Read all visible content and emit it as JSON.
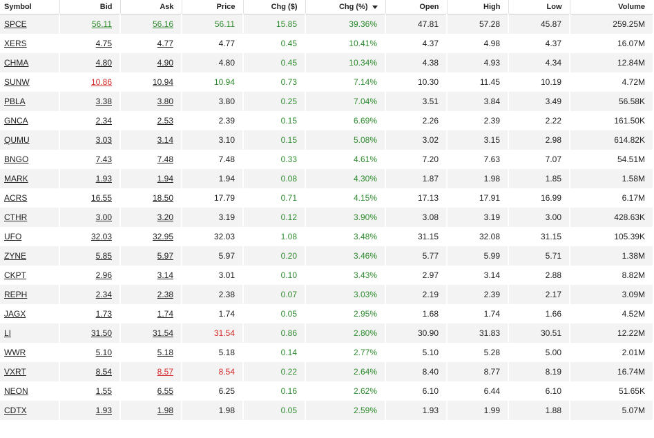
{
  "headers": {
    "symbol": "Symbol",
    "bid": "Bid",
    "ask": "Ask",
    "price": "Price",
    "chg": "Chg ($)",
    "chg_pct": "Chg (%)",
    "open": "Open",
    "high": "High",
    "low": "Low",
    "volume": "Volume"
  },
  "colors": {
    "up": "#2e8b2e",
    "down": "#d62828"
  },
  "rows": [
    {
      "symbol": "SPCE",
      "bid": "56.11",
      "bid_color": "up",
      "ask": "56.16",
      "ask_color": "up",
      "price": "56.11",
      "price_color": "up",
      "chg": "15.85",
      "chg_pct": "39.36%",
      "open": "47.81",
      "high": "57.28",
      "low": "45.87",
      "volume": "259.25M"
    },
    {
      "symbol": "XERS",
      "bid": "4.75",
      "bid_color": "",
      "ask": "4.77",
      "ask_color": "",
      "price": "4.77",
      "price_color": "",
      "chg": "0.45",
      "chg_pct": "10.41%",
      "open": "4.37",
      "high": "4.98",
      "low": "4.37",
      "volume": "16.07M"
    },
    {
      "symbol": "CHMA",
      "bid": "4.80",
      "bid_color": "",
      "ask": "4.90",
      "ask_color": "",
      "price": "4.80",
      "price_color": "",
      "chg": "0.45",
      "chg_pct": "10.34%",
      "open": "4.38",
      "high": "4.93",
      "low": "4.34",
      "volume": "12.84M"
    },
    {
      "symbol": "SUNW",
      "bid": "10.86",
      "bid_color": "down",
      "ask": "10.94",
      "ask_color": "",
      "price": "10.94",
      "price_color": "up",
      "chg": "0.73",
      "chg_pct": "7.14%",
      "open": "10.30",
      "high": "11.45",
      "low": "10.19",
      "volume": "4.72M"
    },
    {
      "symbol": "PBLA",
      "bid": "3.38",
      "bid_color": "",
      "ask": "3.80",
      "ask_color": "",
      "price": "3.80",
      "price_color": "",
      "chg": "0.25",
      "chg_pct": "7.04%",
      "open": "3.51",
      "high": "3.84",
      "low": "3.49",
      "volume": "56.58K"
    },
    {
      "symbol": "GNCA",
      "bid": "2.34",
      "bid_color": "",
      "ask": "2.53",
      "ask_color": "",
      "price": "2.39",
      "price_color": "",
      "chg": "0.15",
      "chg_pct": "6.69%",
      "open": "2.26",
      "high": "2.39",
      "low": "2.22",
      "volume": "161.50K"
    },
    {
      "symbol": "QUMU",
      "bid": "3.03",
      "bid_color": "",
      "ask": "3.14",
      "ask_color": "",
      "price": "3.10",
      "price_color": "",
      "chg": "0.15",
      "chg_pct": "5.08%",
      "open": "3.02",
      "high": "3.15",
      "low": "2.98",
      "volume": "614.82K"
    },
    {
      "symbol": "BNGO",
      "bid": "7.43",
      "bid_color": "",
      "ask": "7.48",
      "ask_color": "",
      "price": "7.48",
      "price_color": "",
      "chg": "0.33",
      "chg_pct": "4.61%",
      "open": "7.20",
      "high": "7.63",
      "low": "7.07",
      "volume": "54.51M"
    },
    {
      "symbol": "MARK",
      "bid": "1.93",
      "bid_color": "",
      "ask": "1.94",
      "ask_color": "",
      "price": "1.94",
      "price_color": "",
      "chg": "0.08",
      "chg_pct": "4.30%",
      "open": "1.87",
      "high": "1.98",
      "low": "1.85",
      "volume": "1.58M"
    },
    {
      "symbol": "ACRS",
      "bid": "16.55",
      "bid_color": "",
      "ask": "18.50",
      "ask_color": "",
      "price": "17.79",
      "price_color": "",
      "chg": "0.71",
      "chg_pct": "4.15%",
      "open": "17.13",
      "high": "17.91",
      "low": "16.99",
      "volume": "6.17M"
    },
    {
      "symbol": "CTHR",
      "bid": "3.00",
      "bid_color": "",
      "ask": "3.20",
      "ask_color": "",
      "price": "3.19",
      "price_color": "",
      "chg": "0.12",
      "chg_pct": "3.90%",
      "open": "3.08",
      "high": "3.19",
      "low": "3.00",
      "volume": "428.63K"
    },
    {
      "symbol": "UFO",
      "bid": "32.03",
      "bid_color": "",
      "ask": "32.95",
      "ask_color": "",
      "price": "32.03",
      "price_color": "",
      "chg": "1.08",
      "chg_pct": "3.48%",
      "open": "31.15",
      "high": "32.08",
      "low": "31.15",
      "volume": "105.39K"
    },
    {
      "symbol": "ZYNE",
      "bid": "5.85",
      "bid_color": "",
      "ask": "5.97",
      "ask_color": "",
      "price": "5.97",
      "price_color": "",
      "chg": "0.20",
      "chg_pct": "3.46%",
      "open": "5.77",
      "high": "5.99",
      "low": "5.71",
      "volume": "1.38M"
    },
    {
      "symbol": "CKPT",
      "bid": "2.96",
      "bid_color": "",
      "ask": "3.14",
      "ask_color": "",
      "price": "3.01",
      "price_color": "",
      "chg": "0.10",
      "chg_pct": "3.43%",
      "open": "2.97",
      "high": "3.14",
      "low": "2.88",
      "volume": "8.82M"
    },
    {
      "symbol": "REPH",
      "bid": "2.34",
      "bid_color": "",
      "ask": "2.38",
      "ask_color": "",
      "price": "2.38",
      "price_color": "",
      "chg": "0.07",
      "chg_pct": "3.03%",
      "open": "2.19",
      "high": "2.39",
      "low": "2.17",
      "volume": "3.09M"
    },
    {
      "symbol": "JAGX",
      "bid": "1.73",
      "bid_color": "",
      "ask": "1.74",
      "ask_color": "",
      "price": "1.74",
      "price_color": "",
      "chg": "0.05",
      "chg_pct": "2.95%",
      "open": "1.68",
      "high": "1.74",
      "low": "1.66",
      "volume": "4.52M"
    },
    {
      "symbol": "LI",
      "bid": "31.50",
      "bid_color": "",
      "ask": "31.54",
      "ask_color": "",
      "price": "31.54",
      "price_color": "down",
      "chg": "0.86",
      "chg_pct": "2.80%",
      "open": "30.90",
      "high": "31.83",
      "low": "30.51",
      "volume": "12.22M"
    },
    {
      "symbol": "WWR",
      "bid": "5.10",
      "bid_color": "",
      "ask": "5.18",
      "ask_color": "",
      "price": "5.18",
      "price_color": "",
      "chg": "0.14",
      "chg_pct": "2.77%",
      "open": "5.10",
      "high": "5.28",
      "low": "5.00",
      "volume": "2.01M"
    },
    {
      "symbol": "VXRT",
      "bid": "8.54",
      "bid_color": "",
      "ask": "8.57",
      "ask_color": "down",
      "price": "8.54",
      "price_color": "down",
      "chg": "0.22",
      "chg_pct": "2.64%",
      "open": "8.40",
      "high": "8.77",
      "low": "8.19",
      "volume": "16.74M"
    },
    {
      "symbol": "NEON",
      "bid": "1.55",
      "bid_color": "",
      "ask": "6.55",
      "ask_color": "",
      "price": "6.25",
      "price_color": "",
      "chg": "0.16",
      "chg_pct": "2.62%",
      "open": "6.10",
      "high": "6.44",
      "low": "6.10",
      "volume": "51.65K"
    },
    {
      "symbol": "CDTX",
      "bid": "1.93",
      "bid_color": "",
      "ask": "1.98",
      "ask_color": "",
      "price": "1.98",
      "price_color": "",
      "chg": "0.05",
      "chg_pct": "2.59%",
      "open": "1.93",
      "high": "1.99",
      "low": "1.88",
      "volume": "5.07M"
    }
  ]
}
